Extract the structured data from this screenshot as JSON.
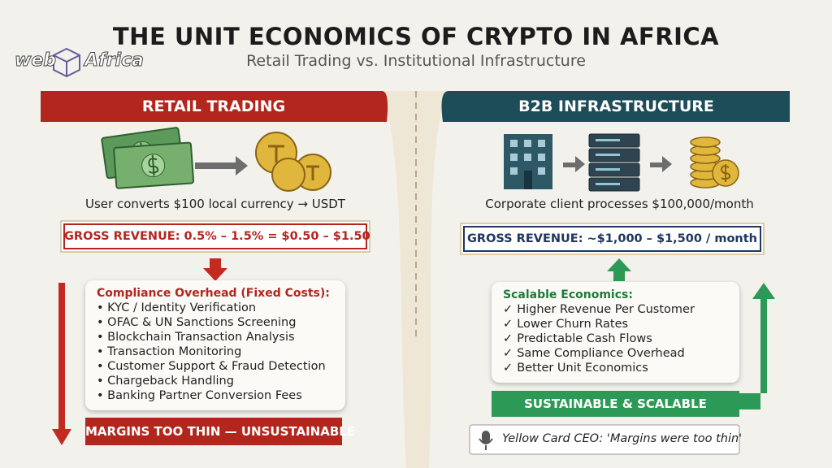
{
  "header": {
    "title": "THE UNIT ECONOMICS OF CRYPTO IN AFRICA",
    "subtitle": "Retail Trading vs. Institutional Infrastructure"
  },
  "logo": {
    "left": "web",
    "right": "Africa"
  },
  "retail": {
    "heading": "RETAIL TRADING",
    "caption": "User converts $100 local currency → USDT",
    "revenue": "GROSS REVENUE: 0.5% – 1.5% = $0.50 – $1.50",
    "costs": {
      "title": "Compliance Overhead (Fixed Costs):",
      "items": [
        "KYC / Identity Verification",
        "OFAC & UN Sanctions Screening",
        "Blockchain Transaction Analysis",
        "Transaction Monitoring",
        "Customer Support & Fraud Detection",
        "Chargeback Handling",
        "Banking Partner Conversion Fees"
      ]
    },
    "verdict": "MARGINS TOO THIN — UNSUSTAINABLE"
  },
  "b2b": {
    "heading": "B2B INFRASTRUCTURE",
    "caption": "Corporate client processes $100,000/month",
    "revenue": "GROSS REVENUE: ~$1,000 – $1,500 / month",
    "benefits": {
      "title": "Scalable Economics:",
      "items": [
        "Higher Revenue Per Customer",
        "Lower Churn Rates",
        "Predictable Cash Flows",
        "Same Compliance Overhead",
        "Better Unit Economics"
      ]
    },
    "verdict": "SUSTAINABLE & SCALABLE",
    "quote": "Yellow Card CEO: 'Margins were too thin'"
  }
}
